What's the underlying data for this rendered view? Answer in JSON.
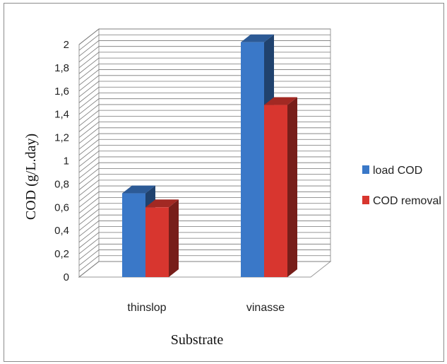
{
  "chart_data": {
    "type": "bar",
    "title": "",
    "xlabel": "Substrate",
    "ylabel": "COD (g/L.day)",
    "categories": [
      "thinslop",
      "vinasse"
    ],
    "series": [
      {
        "name": "load COD",
        "values": [
          0.72,
          2.02
        ]
      },
      {
        "name": "COD removal",
        "values": [
          0.6,
          1.48
        ]
      }
    ],
    "ylim": [
      0,
      2
    ],
    "yticks": [
      "0",
      "0,2",
      "0,4",
      "0,6",
      "0,8",
      "1",
      "1,2",
      "1,4",
      "1,6",
      "1,8",
      "2"
    ],
    "grid": true,
    "three_d": true,
    "legend_position": "right",
    "colors": {
      "load COD": "#3a78c8",
      "COD removal": "#d8362f"
    }
  }
}
